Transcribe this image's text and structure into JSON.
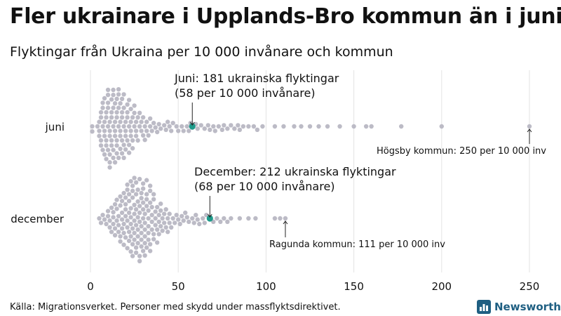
{
  "title": "Fler ukrainare i Upplands-Bro kommun än i juni",
  "subtitle": "Flyktingar från Ukraina per 10 000 invånare och kommun",
  "source": "Källa: Migrationsverket. Personer med skydd under massflyktsdirektivet.",
  "brand": {
    "name": "Newsworthy",
    "icon": "bar-chart-icon",
    "color": "#1f5f82"
  },
  "colors": {
    "dots": "#bcbbc6",
    "highlight": "#1e9a8a",
    "grid": "#e3e3e3"
  },
  "chart_data": {
    "type": "scatter",
    "xlim": [
      0,
      250
    ],
    "x_ticks": [
      0,
      50,
      100,
      150,
      200,
      250
    ],
    "grid": true,
    "categories": [
      "juni",
      "december"
    ],
    "series": [
      {
        "name": "juni",
        "values": [
          1,
          1,
          4,
          5,
          5,
          5,
          6,
          6,
          6,
          6,
          7,
          7,
          7,
          7,
          8,
          8,
          8,
          8,
          8,
          9,
          9,
          9,
          9,
          9,
          10,
          10,
          10,
          10,
          10,
          10,
          11,
          11,
          11,
          11,
          11,
          11,
          12,
          12,
          12,
          12,
          12,
          13,
          13,
          13,
          13,
          13,
          13,
          14,
          14,
          14,
          14,
          14,
          15,
          15,
          15,
          15,
          15,
          15,
          16,
          16,
          16,
          16,
          16,
          17,
          17,
          17,
          17,
          17,
          18,
          18,
          18,
          18,
          18,
          19,
          19,
          19,
          19,
          19,
          20,
          20,
          20,
          20,
          21,
          21,
          21,
          21,
          22,
          22,
          22,
          22,
          23,
          23,
          23,
          23,
          24,
          24,
          24,
          25,
          25,
          25,
          26,
          26,
          26,
          27,
          27,
          28,
          28,
          29,
          29,
          30,
          30,
          31,
          31,
          32,
          32,
          33,
          34,
          34,
          35,
          36,
          37,
          38,
          39,
          40,
          42,
          43,
          44,
          45,
          46,
          47,
          49,
          50,
          52,
          53,
          55,
          56,
          57,
          58,
          60,
          61,
          63,
          65,
          67,
          68,
          70,
          71,
          73,
          75,
          76,
          78,
          80,
          82,
          84,
          85,
          87,
          90,
          93,
          95,
          98,
          105,
          110,
          116,
          120,
          125,
          130,
          135,
          142,
          150,
          157,
          160,
          177,
          200,
          250
        ],
        "highlight": {
          "value": 58,
          "label_line1": "Juni: 181 ukrainska flyktingar",
          "label_line2": "(58 per 10 000 invånare)"
        },
        "max_annotation": {
          "value": 250,
          "label": "Högsby kommun: 250 per 10 000 inv"
        }
      },
      {
        "name": "december",
        "values": [
          5,
          6,
          7,
          8,
          9,
          10,
          10,
          11,
          11,
          12,
          12,
          13,
          13,
          13,
          14,
          14,
          14,
          15,
          15,
          15,
          16,
          16,
          16,
          17,
          17,
          17,
          17,
          18,
          18,
          18,
          18,
          19,
          19,
          19,
          19,
          20,
          20,
          20,
          20,
          20,
          21,
          21,
          21,
          21,
          21,
          22,
          22,
          22,
          22,
          22,
          23,
          23,
          23,
          23,
          23,
          23,
          24,
          24,
          24,
          24,
          24,
          24,
          25,
          25,
          25,
          25,
          25,
          25,
          26,
          26,
          26,
          26,
          26,
          26,
          27,
          27,
          27,
          27,
          27,
          27,
          28,
          28,
          28,
          28,
          28,
          28,
          29,
          29,
          29,
          29,
          29,
          29,
          30,
          30,
          30,
          30,
          30,
          30,
          31,
          31,
          31,
          31,
          31,
          31,
          32,
          32,
          32,
          32,
          32,
          33,
          33,
          33,
          33,
          33,
          34,
          34,
          34,
          34,
          34,
          35,
          35,
          35,
          35,
          36,
          36,
          36,
          36,
          37,
          37,
          37,
          38,
          38,
          38,
          39,
          39,
          39,
          40,
          40,
          40,
          41,
          41,
          42,
          42,
          43,
          43,
          44,
          44,
          45,
          45,
          46,
          47,
          48,
          49,
          50,
          51,
          52,
          53,
          54,
          55,
          56,
          58,
          59,
          60,
          61,
          62,
          64,
          65,
          66,
          68,
          70,
          72,
          74,
          76,
          78,
          80,
          85,
          90,
          94,
          105,
          108,
          111
        ],
        "highlight": {
          "value": 68,
          "label_line1": "December: 212 ukrainska flyktingar",
          "label_line2": "(68 per 10 000 invånare)"
        },
        "max_annotation": {
          "value": 111,
          "label": "Ragunda kommun: 111 per 10 000 inv"
        }
      }
    ]
  }
}
